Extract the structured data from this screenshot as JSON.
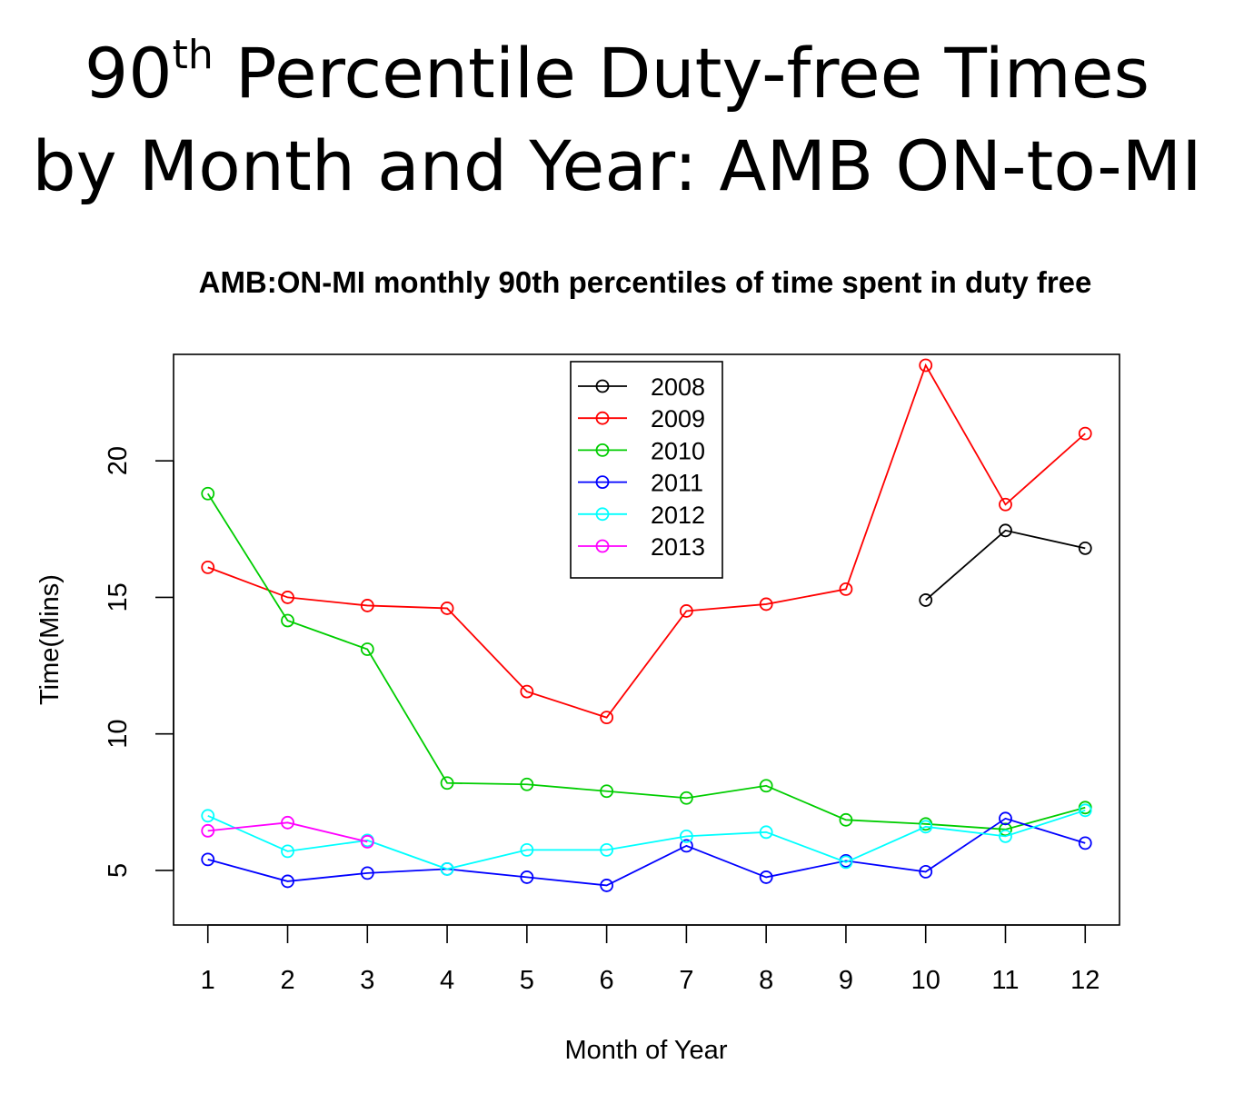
{
  "slide_title": {
    "line1_prefix": "90",
    "line1_sup": "th",
    "line1_rest": " Percentile Duty-free Times",
    "line2": "by Month and Year: AMB ON-to-MI"
  },
  "chart_data": {
    "type": "line",
    "title": "AMB:ON-MI monthly 90th percentiles of time spent in duty free",
    "xlabel": "Month of Year",
    "ylabel": "Time(Mins)",
    "x": [
      1,
      2,
      3,
      4,
      5,
      6,
      7,
      8,
      9,
      10,
      11,
      12
    ],
    "xlim": [
      0.57,
      12.43
    ],
    "ylim": [
      3.0,
      23.9
    ],
    "yticks": [
      5,
      10,
      15,
      20
    ],
    "grid": false,
    "legend_position": "top-center",
    "series": [
      {
        "name": "2008",
        "color": "#000000",
        "values": [
          null,
          null,
          null,
          null,
          null,
          null,
          null,
          null,
          null,
          14.9,
          17.45,
          16.8
        ]
      },
      {
        "name": "2009",
        "color": "#ff0000",
        "values": [
          16.1,
          15.0,
          14.7,
          14.6,
          11.55,
          10.6,
          14.5,
          14.75,
          15.3,
          23.5,
          18.4,
          21.0
        ]
      },
      {
        "name": "2010",
        "color": "#00cd00",
        "values": [
          18.8,
          14.15,
          13.1,
          8.2,
          8.15,
          7.9,
          7.65,
          8.1,
          6.85,
          6.7,
          6.5,
          7.3
        ]
      },
      {
        "name": "2011",
        "color": "#0000ff",
        "values": [
          5.4,
          4.6,
          4.9,
          5.05,
          4.75,
          4.45,
          5.9,
          4.75,
          5.35,
          4.95,
          6.9,
          6.0
        ]
      },
      {
        "name": "2012",
        "color": "#00ffff",
        "values": [
          7.0,
          5.7,
          6.1,
          5.05,
          5.75,
          5.75,
          6.25,
          6.4,
          5.3,
          6.6,
          6.25,
          7.2
        ]
      },
      {
        "name": "2013",
        "color": "#ff00ff",
        "values": [
          6.45,
          6.75,
          6.05,
          null,
          null,
          null,
          null,
          null,
          null,
          null,
          null,
          null
        ]
      }
    ]
  }
}
